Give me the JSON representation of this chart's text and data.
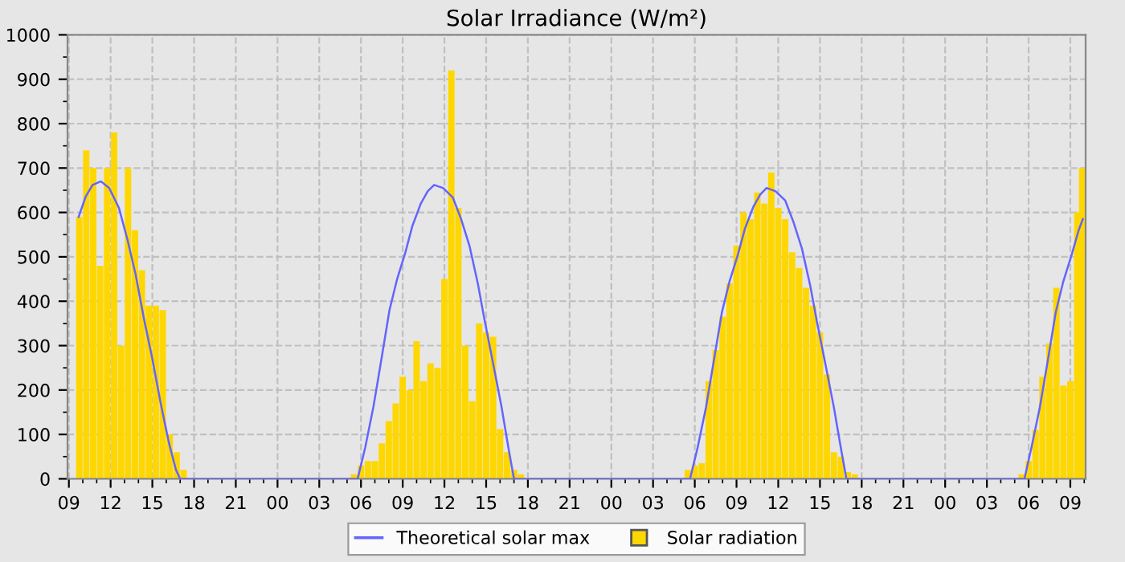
{
  "chart_data": {
    "type": "bar",
    "title": "Solar Irradiance (W/m²)",
    "xlim": [
      8.9,
      82.1
    ],
    "ylim": [
      0,
      1000
    ],
    "xticks": [
      {
        "value": 9,
        "label": "09"
      },
      {
        "value": 12,
        "label": "12"
      },
      {
        "value": 15,
        "label": "15"
      },
      {
        "value": 18,
        "label": "18"
      },
      {
        "value": 21,
        "label": "21"
      },
      {
        "value": 24,
        "label": "00"
      },
      {
        "value": 27,
        "label": "03"
      },
      {
        "value": 30,
        "label": "06"
      },
      {
        "value": 33,
        "label": "09"
      },
      {
        "value": 36,
        "label": "12"
      },
      {
        "value": 39,
        "label": "15"
      },
      {
        "value": 42,
        "label": "18"
      },
      {
        "value": 45,
        "label": "21"
      },
      {
        "value": 48,
        "label": "00"
      },
      {
        "value": 51,
        "label": "03"
      },
      {
        "value": 54,
        "label": "06"
      },
      {
        "value": 57,
        "label": "09"
      },
      {
        "value": 60,
        "label": "12"
      },
      {
        "value": 63,
        "label": "15"
      },
      {
        "value": 66,
        "label": "18"
      },
      {
        "value": 69,
        "label": "21"
      },
      {
        "value": 72,
        "label": "00"
      },
      {
        "value": 75,
        "label": "03"
      },
      {
        "value": 78,
        "label": "06"
      },
      {
        "value": 81,
        "label": "09"
      }
    ],
    "yticks": [
      0,
      100,
      200,
      300,
      400,
      500,
      600,
      700,
      800,
      900,
      1000
    ],
    "grid": true,
    "legend": "bottom",
    "series": [
      {
        "name": "Theoretical solar max",
        "type": "line",
        "color": "#6464ff",
        "line_style": "solid",
        "marker": "none",
        "x": [
          9.7,
          10.2,
          10.7,
          11.3,
          11.9,
          12.6,
          13.2,
          13.8,
          14.4,
          15.0,
          15.6,
          16.2,
          16.7,
          17.0,
          29.76,
          30.3,
          30.9,
          31.5,
          32.05,
          32.6,
          33.2,
          33.7,
          34.3,
          34.8,
          35.26,
          35.9,
          36.6,
          37.2,
          37.8,
          38.4,
          38.9,
          39.5,
          40.1,
          40.6,
          41.0,
          53.66,
          54.2,
          54.8,
          55.4,
          55.95,
          56.5,
          57.1,
          57.6,
          58.2,
          58.7,
          59.16,
          59.8,
          60.5,
          61.1,
          61.7,
          62.3,
          62.8,
          63.4,
          64.0,
          64.5,
          64.9,
          77.7,
          78.2,
          78.8,
          79.4,
          79.95,
          80.5,
          81.1,
          81.6,
          81.9
        ],
        "values": [
          590,
          635,
          662,
          670,
          655,
          610,
          540,
          460,
          360,
          270,
          170,
          80,
          20,
          0,
          0,
          70,
          163,
          275,
          380,
          450,
          511,
          570,
          620,
          648,
          662,
          655,
          634,
          585,
          525,
          440,
          355,
          260,
          163,
          70,
          0,
          0,
          70,
          160,
          272,
          375,
          445,
          505,
          563,
          612,
          640,
          655,
          648,
          627,
          578,
          519,
          435,
          351,
          257,
          161,
          70,
          0,
          0,
          70,
          160,
          270,
          375,
          445,
          505,
          560,
          585
        ]
      },
      {
        "name": "Solar radiation",
        "color": "#ffd700",
        "x": [
          9.75,
          10.25,
          10.75,
          11.25,
          11.75,
          12.25,
          12.75,
          13.25,
          13.75,
          14.25,
          14.75,
          15.25,
          15.75,
          16.25,
          16.75,
          17.25,
          29.5,
          30.0,
          30.5,
          31.0,
          31.5,
          32.0,
          32.5,
          33.0,
          33.5,
          34.0,
          34.5,
          35.0,
          35.5,
          36.0,
          36.5,
          37.0,
          37.5,
          38.0,
          38.5,
          39.0,
          39.5,
          40.0,
          40.5,
          41.0,
          41.5,
          53.5,
          54.0,
          54.5,
          55.0,
          55.5,
          56.0,
          56.5,
          57.0,
          57.5,
          58.0,
          58.5,
          59.0,
          59.5,
          60.0,
          60.5,
          61.0,
          61.5,
          62.0,
          62.5,
          63.0,
          63.5,
          64.0,
          64.5,
          65.0,
          65.5,
          77.5,
          78.0,
          78.5,
          79.0,
          79.5,
          80.0,
          80.5,
          81.0,
          81.5,
          81.85
        ],
        "values": [
          590,
          740,
          700,
          480,
          700,
          780,
          300,
          700,
          560,
          470,
          390,
          390,
          380,
          100,
          60,
          20,
          10,
          30,
          40,
          40,
          80,
          130,
          170,
          230,
          200,
          310,
          220,
          260,
          250,
          450,
          920,
          610,
          300,
          175,
          350,
          330,
          320,
          112,
          60,
          20,
          10,
          20,
          30,
          35,
          220,
          290,
          365,
          440,
          525,
          600,
          585,
          645,
          620,
          690,
          610,
          585,
          510,
          475,
          430,
          390,
          330,
          235,
          60,
          50,
          15,
          10,
          10,
          40,
          110,
          230,
          305,
          430,
          210,
          220,
          600,
          700
        ]
      }
    ]
  }
}
